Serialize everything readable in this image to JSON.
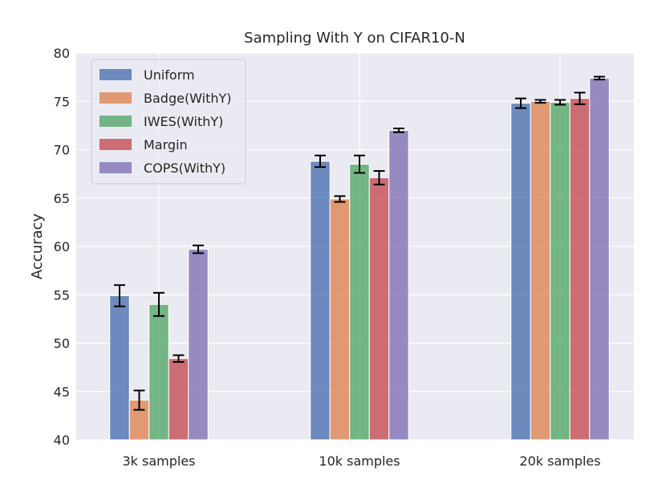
{
  "chart_data": {
    "type": "bar",
    "title": "Sampling With Y on CIFAR10-N",
    "xlabel": "",
    "ylabel": "Accuracy",
    "ylim": [
      40,
      80
    ],
    "yticks": [
      40,
      45,
      50,
      55,
      60,
      65,
      70,
      75,
      80
    ],
    "categories": [
      "3k samples",
      "10k samples",
      "20k samples"
    ],
    "grid": true,
    "legend_position": "top-left",
    "series": [
      {
        "name": "Uniform",
        "color": "#4c72b0",
        "values": [
          54.9,
          68.8,
          74.8
        ],
        "errors": [
          1.1,
          0.6,
          0.5
        ]
      },
      {
        "name": "Badge(WithY)",
        "color": "#dd8452",
        "values": [
          44.1,
          64.9,
          75.0
        ],
        "errors": [
          1.0,
          0.3,
          0.15
        ]
      },
      {
        "name": "IWES(WithY)",
        "color": "#55a868",
        "values": [
          54.0,
          68.5,
          74.9
        ],
        "errors": [
          1.2,
          0.9,
          0.25
        ]
      },
      {
        "name": "Margin",
        "color": "#c44e52",
        "values": [
          48.4,
          67.1,
          75.3
        ],
        "errors": [
          0.35,
          0.7,
          0.6
        ]
      },
      {
        "name": "COPS(WithY)",
        "color": "#8172b3",
        "values": [
          59.7,
          72.0,
          77.4
        ],
        "errors": [
          0.4,
          0.2,
          0.15
        ]
      }
    ]
  }
}
